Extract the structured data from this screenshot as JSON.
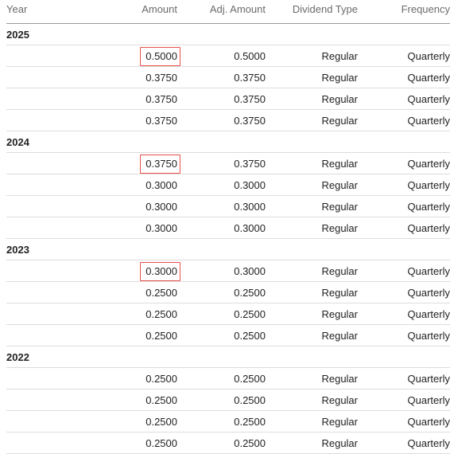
{
  "header": {
    "year": "Year",
    "amount": "Amount",
    "adj_amount": "Adj. Amount",
    "dividend_type": "Dividend Type",
    "frequency": "Frequency"
  },
  "groups": [
    {
      "year": "2025",
      "rows": [
        {
          "amount": "0.5000",
          "adj": "0.5000",
          "type": "Regular",
          "freq": "Quarterly",
          "highlighted": true
        },
        {
          "amount": "0.3750",
          "adj": "0.3750",
          "type": "Regular",
          "freq": "Quarterly",
          "highlighted": false
        },
        {
          "amount": "0.3750",
          "adj": "0.3750",
          "type": "Regular",
          "freq": "Quarterly",
          "highlighted": false
        },
        {
          "amount": "0.3750",
          "adj": "0.3750",
          "type": "Regular",
          "freq": "Quarterly",
          "highlighted": false
        }
      ]
    },
    {
      "year": "2024",
      "rows": [
        {
          "amount": "0.3750",
          "adj": "0.3750",
          "type": "Regular",
          "freq": "Quarterly",
          "highlighted": true
        },
        {
          "amount": "0.3000",
          "adj": "0.3000",
          "type": "Regular",
          "freq": "Quarterly",
          "highlighted": false
        },
        {
          "amount": "0.3000",
          "adj": "0.3000",
          "type": "Regular",
          "freq": "Quarterly",
          "highlighted": false
        },
        {
          "amount": "0.3000",
          "adj": "0.3000",
          "type": "Regular",
          "freq": "Quarterly",
          "highlighted": false
        }
      ]
    },
    {
      "year": "2023",
      "rows": [
        {
          "amount": "0.3000",
          "adj": "0.3000",
          "type": "Regular",
          "freq": "Quarterly",
          "highlighted": true
        },
        {
          "amount": "0.2500",
          "adj": "0.2500",
          "type": "Regular",
          "freq": "Quarterly",
          "highlighted": false
        },
        {
          "amount": "0.2500",
          "adj": "0.2500",
          "type": "Regular",
          "freq": "Quarterly",
          "highlighted": false
        },
        {
          "amount": "0.2500",
          "adj": "0.2500",
          "type": "Regular",
          "freq": "Quarterly",
          "highlighted": false
        }
      ]
    },
    {
      "year": "2022",
      "rows": [
        {
          "amount": "0.2500",
          "adj": "0.2500",
          "type": "Regular",
          "freq": "Quarterly",
          "highlighted": false
        },
        {
          "amount": "0.2500",
          "adj": "0.2500",
          "type": "Regular",
          "freq": "Quarterly",
          "highlighted": false
        },
        {
          "amount": "0.2500",
          "adj": "0.2500",
          "type": "Regular",
          "freq": "Quarterly",
          "highlighted": false
        },
        {
          "amount": "0.2500",
          "adj": "0.2500",
          "type": "Regular",
          "freq": "Quarterly",
          "highlighted": false
        }
      ]
    }
  ],
  "colors": {
    "highlight_border": "#e8504b",
    "header_text": "#6b6b6b",
    "body_text": "#222222"
  }
}
